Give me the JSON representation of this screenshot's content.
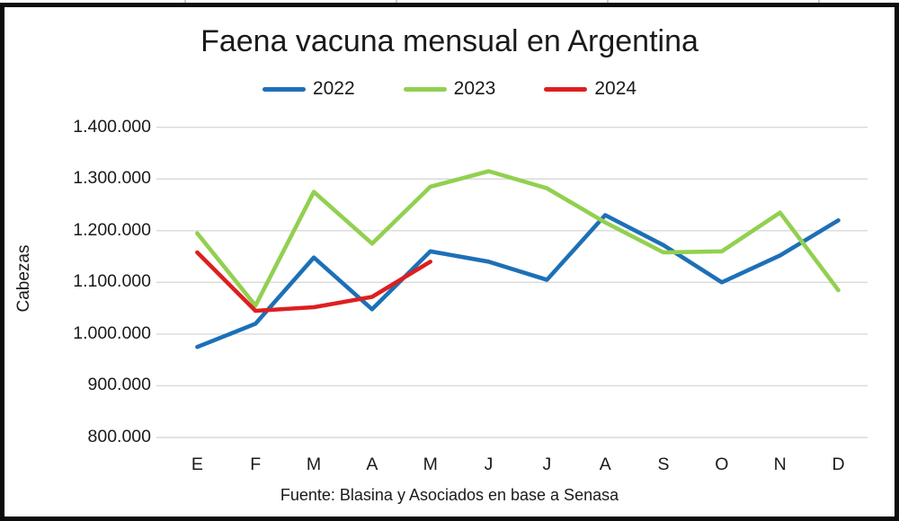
{
  "page": {
    "kind": "excel-chart-screenshot"
  },
  "chart_data": {
    "type": "line",
    "title": "Faena vacuna mensual en Argentina",
    "ylabel": "Cabezas",
    "xlabel": "",
    "source": "Fuente: Blasina y Asociados en base a Senasa",
    "categories": [
      "E",
      "F",
      "M",
      "A",
      "M",
      "J",
      "J",
      "A",
      "S",
      "O",
      "N",
      "D"
    ],
    "series": [
      {
        "name": "2022",
        "color": "#1D70B7",
        "values": [
          975000,
          1020000,
          1148000,
          1048000,
          1160000,
          1140000,
          1105000,
          1230000,
          1172000,
          1100000,
          1152000,
          1220000
        ]
      },
      {
        "name": "2023",
        "color": "#92D050",
        "values": [
          1195000,
          1055000,
          1275000,
          1175000,
          1285000,
          1315000,
          1282000,
          1216000,
          1158000,
          1160000,
          1235000,
          1085000
        ]
      },
      {
        "name": "2024",
        "color": "#DE1F1F",
        "values": [
          1158000,
          1045000,
          1052000,
          1072000,
          1140000,
          null,
          null,
          null,
          null,
          null,
          null,
          null
        ]
      }
    ],
    "ylim": [
      800000,
      1400000
    ],
    "ytick_step": 100000,
    "yticks": [
      1400000,
      1300000,
      1200000,
      1100000,
      1000000,
      900000,
      800000
    ],
    "ytick_labels": [
      "1.400.000",
      "1.300.000",
      "1.200.000",
      "1.100.000",
      "1.000.000",
      "900.000",
      "800.000"
    ],
    "grid": true,
    "legend_position": "top"
  }
}
